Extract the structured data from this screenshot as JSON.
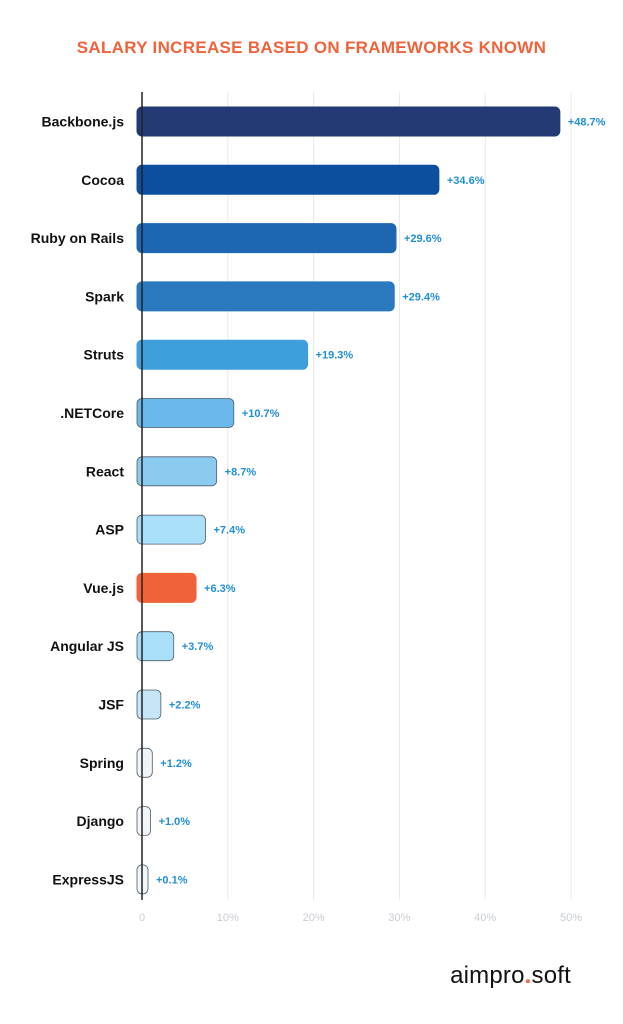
{
  "title": "SALARY INCREASE BASED ON FRAMEWORKS KNOWN",
  "logo": {
    "left": "aimpro",
    "dot": ".",
    "right": "soft"
  },
  "colors": {
    "title": "#f0623a",
    "value_label": "#1f8fd6",
    "highlight": "#f0623a",
    "axis": "#222222",
    "grid": "#e6e8eb",
    "tick": "#c8ccd2"
  },
  "chart_data": {
    "type": "bar",
    "orientation": "horizontal",
    "title": "SALARY INCREASE BASED ON FRAMEWORKS KNOWN",
    "xlabel": "",
    "ylabel": "",
    "xlim": [
      0,
      50
    ],
    "xticks": [
      "0",
      "10%",
      "20%",
      "30%",
      "40%",
      "50%"
    ],
    "grid": true,
    "categories": [
      "Backbone.js",
      "Cocoa",
      "Ruby on Rails",
      "Spark",
      "Struts",
      ".NETCore",
      "React",
      "ASP",
      "Vue.js",
      "Angular JS",
      "JSF",
      "Spring",
      "Django",
      "ExpressJS"
    ],
    "values": [
      48.7,
      34.6,
      29.6,
      29.4,
      19.3,
      10.7,
      8.7,
      7.4,
      6.3,
      3.7,
      2.2,
      1.2,
      1.0,
      0.1
    ],
    "value_labels": [
      "+48.7%",
      "+34.6%",
      "+29.6%",
      "+29.4%",
      "+19.3%",
      "+10.7%",
      "+8.7%",
      "+7.4%",
      "+6.3%",
      "+3.7%",
      "+2.2%",
      "+1.2%",
      "+1.0%",
      "+0.1%"
    ],
    "bar_colors": [
      "#233a75",
      "#0b4f9e",
      "#1e66b2",
      "#2a79bf",
      "#3f9fdc",
      "#6ab9ea",
      "#8ccbf0",
      "#aadff9",
      "#f0623a",
      "#aadff9",
      "#c6e5f6",
      "#eef4f8",
      "#f1f5f8",
      "#f3f6f9"
    ]
  }
}
